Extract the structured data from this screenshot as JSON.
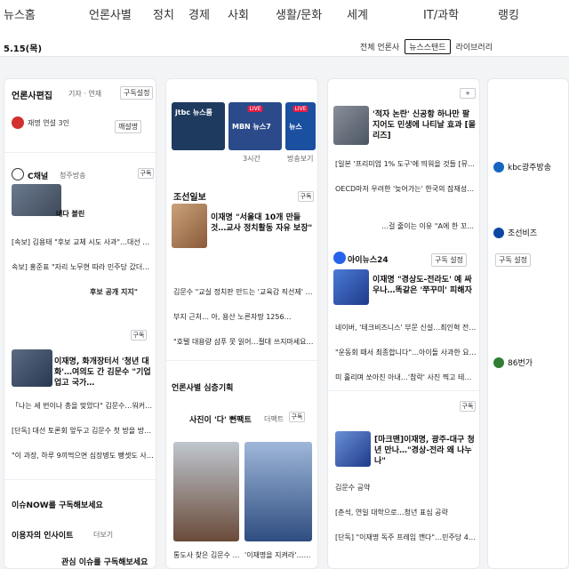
{
  "topnav": [
    "뉴스홈",
    "언론사별",
    "정치",
    "경제",
    "사회",
    "생활/문화",
    "세계",
    "IT/과학",
    "랭킹"
  ],
  "date": "5.15(목)",
  "filters": {
    "all": "전체 언론사",
    "newsstand": "뉴스스탠드",
    "library": "라이브러리"
  },
  "col1": {
    "press1": {
      "name": "언론사편집",
      "sub": "기자 · 연재",
      "subscribe": "구독설정",
      "logo_color": "#d32f2f"
    },
    "menu": "재명 연설 3인",
    "tag1": "깨설명",
    "press2": {
      "name": "C채널",
      "sub": "청주방송",
      "subscribe": "구독"
    },
    "caption1": "네다 볼린",
    "lines1": [
      "[속보] 김용태 \"후보 교체 시도 사과\"…대선 승리 위해…",
      "속보] 홍준표 \"자리 노무현 따라 민주당 갔더라면\""
    ],
    "line_b": "후보 공개 지지\"",
    "press3": {
      "subscribe": "구독"
    },
    "hl2": "이재명, 화개장터서 '청년 대화'…여의도 간 김문수 \"기업 업고 국가…",
    "lines2": [
      "「나는 세 번이나 총을 맞았다\" 김문수…워커도 건강식…",
      "[단독] 대선 토론회 앞두고 김문수 첫 방을 방치하고 테니스…",
      "\"이 과장, 하루 9끼먹으면 심장병도 빵셋도 사라진다고요?\""
    ],
    "section1": "이슈NOW를 구독해보세요",
    "section2": "이용자의 인사이트",
    "section2_sub": "더보기",
    "bottom": "관심 이슈를 구독해보세요"
  },
  "col2": {
    "tvs": [
      {
        "label": "jtbc 뉴스룸",
        "color": "#1e3a5f"
      },
      {
        "label": "MBN 뉴스7",
        "color": "#2b4a8a",
        "live": "LIVE"
      },
      {
        "label": "뉴스",
        "color": "#1b4fa0",
        "live": "LIVE"
      }
    ],
    "tv_labels": [
      "3시간",
      "방송보기"
    ],
    "press": {
      "name": "조선일보",
      "subscribe": "구독"
    },
    "hl": "이재명 \"서울대 10개 만들 것…교사 정치활동 자유 보장\"",
    "lines": [
      "김문수 \"교실 정치판 만드는 '교육감 직선제' 폐지\"",
      "부지 근처… 아, 용산 노른자땅 1256…",
      "\"호텔 대용량 샴푸 못 읽어…절대 쓰지마세요\" 지적의 경고"
    ],
    "section": "언론사별 심층기획",
    "press2": {
      "name": "사진이 '다' 뻔팩트",
      "sub": "더팩트",
      "subscribe": "구독"
    },
    "captions": [
      "통도사 찾은 김문수 국민의힘 대선 후보",
      "'이재명을 지켜라'…저격에 대비한 현장"
    ]
  },
  "col3": {
    "headlines": [
      "'적자 논란' 신공항 하나만 팔 지어도 민생에 나티날 효과 [몰리즈]"
    ],
    "line1": "[일본 '프리미엄 1% 도구'에 띄워을 것들 [뮤…",
    "line2": "OECD마저 우려한 '늦어가는' 한국의 잠재성장률 [마무…",
    "line3": "…걸 줄이는 이유 \"A에 한 꼬이라도 더…",
    "press": {
      "name": "아이뉴스24",
      "subscribe": "구독 설정"
    },
    "hl": "이재명 \"경상도-전라도' 예 싸우나…똑같은 '쭈꾸미' 피해자",
    "lines": [
      "네이버, '테크비즈니스' 부문 신설…최인혁 전 COO 3년…",
      "\"운동회 때서 최종합니다\"…아이돌 사과한 요즘 운동회 \"…",
      "미 홀리며 쏘아진 아내…'참락' 사진 찍고 테니스 간 남편"
    ],
    "press2": {
      "subscribe": "구독"
    },
    "hl2": "[마크맨]이재명, 광주-대구 청년 만나…\"경상-전라 왜 나누나\"",
    "lines2": [
      "김문수 공약 ",
      "[춘석, 연일 대학으로…청년 표심 공략",
      "[단독] \"이재명 독주 프레임 깬다\"…민주당 4대 선거전략"
    ]
  },
  "col4": {
    "items": [
      "kbc광주방송",
      "조선비즈",
      "구독 설정",
      "86번가"
    ],
    "colors": [
      "#1565c0",
      "#0d47a1",
      "#6b7280",
      "#2e7d32"
    ]
  }
}
